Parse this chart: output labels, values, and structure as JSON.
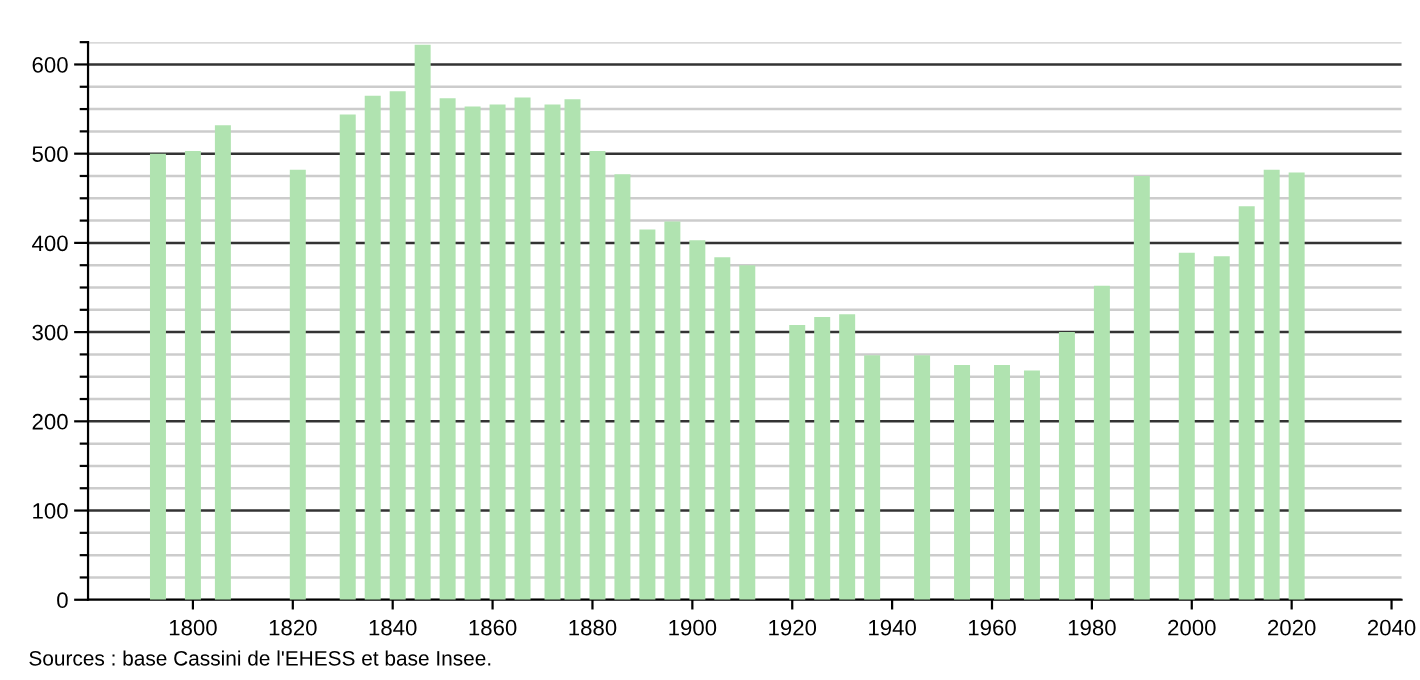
{
  "chart_data": {
    "type": "bar",
    "x": [
      1793,
      1800,
      1806,
      1821,
      1831,
      1836,
      1841,
      1846,
      1851,
      1856,
      1861,
      1866,
      1872,
      1876,
      1881,
      1886,
      1891,
      1896,
      1901,
      1906,
      1911,
      1921,
      1926,
      1931,
      1936,
      1946,
      1954,
      1962,
      1968,
      1975,
      1982,
      1990,
      1999,
      2006,
      2011,
      2016,
      2021
    ],
    "values": [
      500,
      503,
      532,
      482,
      544,
      565,
      570,
      622,
      562,
      553,
      555,
      563,
      555,
      561,
      503,
      477,
      415,
      424,
      403,
      384,
      375,
      308,
      317,
      320,
      274,
      274,
      263,
      263,
      257,
      300,
      352,
      475,
      389,
      385,
      441,
      482,
      479
    ],
    "color": "#b0e3b0",
    "xlim": [
      1779,
      2042
    ],
    "xticks": [
      1800,
      1820,
      1840,
      1860,
      1880,
      1900,
      1920,
      1940,
      1960,
      1980,
      2000,
      2020,
      2040
    ],
    "ylim": [
      0,
      625
    ],
    "yticks": [
      0,
      {
        "value": 25,
        "label": null
      },
      {
        "value": 50,
        "label": null
      },
      {
        "value": 75,
        "label": null
      },
      100,
      {
        "value": 125,
        "label": null
      },
      {
        "value": 150,
        "label": null
      },
      {
        "value": 175,
        "label": null
      },
      200,
      {
        "value": 225,
        "label": null
      },
      {
        "value": 250,
        "label": null
      },
      {
        "value": 275,
        "label": null
      },
      300,
      {
        "value": 325,
        "label": null
      },
      {
        "value": 350,
        "label": null
      },
      {
        "value": 375,
        "label": null
      },
      400,
      {
        "value": 425,
        "label": null
      },
      {
        "value": 450,
        "label": null
      },
      {
        "value": 475,
        "label": null
      },
      500,
      {
        "value": 525,
        "label": null
      },
      {
        "value": 550,
        "label": null
      },
      {
        "value": 575,
        "label": null
      },
      600,
      {
        "value": 625,
        "label": null
      }
    ],
    "grid": "y",
    "annotations": [
      "Sources : base Cassini de l'EHESS et base Insee."
    ]
  }
}
